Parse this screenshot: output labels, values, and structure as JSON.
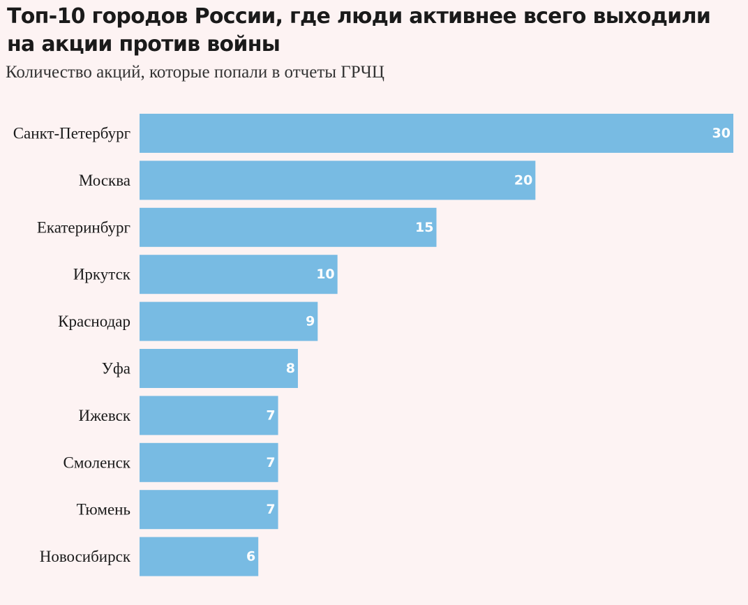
{
  "header": {
    "title": "Топ-10 городов России, где люди активнее всего выходили на акции против войны",
    "subtitle": "Количество акций, которые попали в отчеты ГРЧЦ"
  },
  "colors": {
    "background": "#fdf3f3",
    "bar": "#78bbe3",
    "bar_label": "#ffffff"
  },
  "chart_data": {
    "type": "bar",
    "orientation": "horizontal",
    "title": "Топ-10 городов России, где люди активнее всего выходили на акции против войны",
    "subtitle": "Количество акций, которые попали в отчеты ГРЧЦ",
    "categories": [
      "Санкт-Петербург",
      "Москва",
      "Екатеринбург",
      "Иркутск",
      "Краснодар",
      "Уфа",
      "Ижевск",
      "Смоленск",
      "Тюмень",
      "Новосибирск"
    ],
    "values": [
      30,
      20,
      15,
      10,
      9,
      8,
      7,
      7,
      7,
      6
    ],
    "xlim": [
      0,
      30
    ],
    "grid": false,
    "legend": "none",
    "data_labels": "inside-end"
  }
}
